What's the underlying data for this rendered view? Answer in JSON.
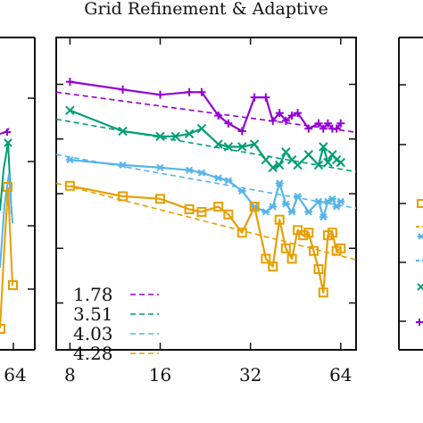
{
  "figure": {
    "title": "Grid Refinement & Adaptive"
  },
  "left_panel": {
    "x_tick_labels": [
      "64"
    ]
  },
  "colors": {
    "purple": "#9400d3",
    "green": "#009e73",
    "blue": "#56b4e9",
    "orange": "#e69f00"
  },
  "chart_data": {
    "type": "line",
    "title": "",
    "xlabel": "",
    "ylabel": "",
    "x_scale": "log2",
    "xlim": [
      7.2,
      72
    ],
    "x_ticks": [
      8,
      16,
      32,
      64
    ],
    "x_tick_labels": [
      "8",
      "16",
      "32",
      "64"
    ],
    "ylim": [
      0,
      6
    ],
    "y_ticks": [
      0.9,
      1.95,
      3.0,
      4.05,
      5.1
    ],
    "grid": false,
    "legend": {
      "placement": "bottom-left",
      "entries": [
        "1.78",
        "3.51",
        "4.03",
        "4.28"
      ]
    },
    "series": [
      {
        "name": "1.78",
        "color": "#9400d3",
        "marker": "plus",
        "x": [
          8,
          12,
          16,
          20,
          22,
          25,
          27,
          30,
          33,
          36,
          38,
          40,
          42,
          44,
          46,
          50,
          54,
          56,
          58,
          60,
          62,
          64
        ],
        "y": [
          5.15,
          5.0,
          4.9,
          4.95,
          4.95,
          4.5,
          4.35,
          4.2,
          4.85,
          4.85,
          4.4,
          4.55,
          4.4,
          4.5,
          4.55,
          4.25,
          4.35,
          4.25,
          4.35,
          4.25,
          4.25,
          4.35
        ],
        "fit": [
          4.95,
          4.18
        ]
      },
      {
        "name": "3.51",
        "color": "#009e73",
        "marker": "x",
        "x": [
          8,
          12,
          16,
          18,
          20,
          22,
          25,
          27,
          30,
          33,
          36,
          38,
          40,
          42,
          44,
          46,
          50,
          54,
          56,
          58,
          60,
          62,
          64
        ],
        "y": [
          4.6,
          4.2,
          4.1,
          4.1,
          4.15,
          4.25,
          3.95,
          3.9,
          3.9,
          3.95,
          3.65,
          3.5,
          3.55,
          3.8,
          3.65,
          3.55,
          3.75,
          3.55,
          3.9,
          3.6,
          3.75,
          3.65,
          3.6
        ],
        "fit": [
          4.43,
          3.42
        ]
      },
      {
        "name": "4.03",
        "color": "#56b4e9",
        "marker": "asterisk",
        "x": [
          8,
          12,
          16,
          20,
          22,
          25,
          27,
          30,
          33,
          36,
          38,
          40,
          42,
          44,
          46,
          50,
          54,
          56,
          58,
          60,
          62,
          64
        ],
        "y": [
          3.65,
          3.55,
          3.5,
          3.45,
          3.4,
          3.3,
          3.25,
          3.05,
          2.75,
          2.65,
          2.75,
          3.2,
          2.8,
          2.65,
          2.95,
          2.65,
          2.85,
          2.55,
          2.85,
          2.9,
          2.75,
          2.85
        ],
        "fit": [
          3.75,
          2.72
        ]
      },
      {
        "name": "4.28",
        "color": "#e69f00",
        "marker": "square",
        "x": [
          8,
          12,
          16,
          20,
          22,
          25,
          27,
          30,
          33,
          36,
          38,
          40,
          42,
          44,
          46,
          48,
          50,
          52,
          54,
          56,
          58,
          60,
          62,
          64
        ],
        "y": [
          3.15,
          2.95,
          2.9,
          2.7,
          2.65,
          2.75,
          2.6,
          2.25,
          2.75,
          1.75,
          1.6,
          2.5,
          1.95,
          1.75,
          2.3,
          2.2,
          2.25,
          1.9,
          1.55,
          1.1,
          2.2,
          2.25,
          1.9,
          1.95
        ],
        "fit": [
          3.2,
          1.73
        ]
      }
    ]
  }
}
